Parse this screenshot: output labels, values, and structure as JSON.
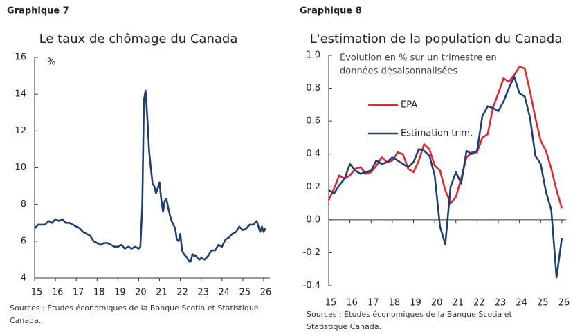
{
  "chart_data": [
    {
      "type": "line",
      "label": "Graphique 7",
      "title": "Le taux de chômage du Canada",
      "unit": "%",
      "x": [
        15.0,
        15.17,
        15.33,
        15.5,
        15.67,
        15.83,
        16.0,
        16.17,
        16.33,
        16.5,
        16.67,
        16.83,
        17.0,
        17.17,
        17.33,
        17.5,
        17.67,
        17.83,
        18.0,
        18.17,
        18.33,
        18.5,
        18.67,
        18.83,
        19.0,
        19.17,
        19.33,
        19.5,
        19.67,
        19.83,
        20.0,
        20.08,
        20.17,
        20.25,
        20.33,
        20.42,
        20.5,
        20.58,
        20.67,
        20.75,
        20.83,
        20.92,
        21.0,
        21.08,
        21.17,
        21.25,
        21.33,
        21.42,
        21.5,
        21.58,
        21.67,
        21.75,
        21.83,
        21.92,
        22.0,
        22.08,
        22.17,
        22.25,
        22.33,
        22.42,
        22.5,
        22.58,
        22.67,
        22.75,
        22.83,
        22.92,
        23.0,
        23.17,
        23.33,
        23.5,
        23.67,
        23.83,
        24.0,
        24.17,
        24.33,
        24.5,
        24.67,
        24.83,
        25.0,
        25.17,
        25.33,
        25.5,
        25.67,
        25.83,
        25.92,
        26.0,
        26.08
      ],
      "values": [
        6.7,
        6.9,
        6.9,
        6.9,
        7.1,
        7.0,
        7.2,
        7.1,
        7.2,
        7.0,
        7.0,
        6.9,
        6.8,
        6.7,
        6.5,
        6.4,
        6.3,
        6.0,
        5.9,
        5.8,
        5.9,
        5.9,
        5.8,
        5.7,
        5.7,
        5.8,
        5.6,
        5.7,
        5.6,
        5.7,
        5.6,
        5.7,
        7.9,
        13.7,
        14.2,
        12.6,
        10.9,
        10.0,
        9.1,
        9.0,
        8.6,
        8.9,
        9.2,
        8.3,
        7.6,
        8.2,
        8.3,
        7.8,
        7.4,
        7.1,
        6.9,
        6.7,
        6.1,
        6.0,
        6.4,
        5.5,
        5.3,
        5.2,
        5.1,
        4.9,
        4.9,
        5.3,
        5.2,
        5.2,
        5.1,
        5.0,
        5.1,
        5.0,
        5.2,
        5.5,
        5.5,
        5.8,
        5.7,
        6.1,
        6.2,
        6.4,
        6.5,
        6.8,
        6.6,
        6.7,
        6.9,
        6.9,
        7.1,
        6.5,
        6.8,
        6.5,
        6.7
      ],
      "color": "#1f3f73",
      "xlim": [
        15,
        26.3
      ],
      "ylim": [
        4,
        16
      ],
      "xticks": [
        15,
        16,
        17,
        18,
        19,
        20,
        21,
        22,
        23,
        24,
        25,
        26
      ],
      "yticks": [
        4,
        6,
        8,
        10,
        12,
        14,
        16
      ],
      "sources": [
        "Sources : Études économiques de la Banque Scotia et Statistique",
        "Canada."
      ]
    },
    {
      "type": "line",
      "label": "Graphique 8",
      "title": "L'estimation de la population du Canada",
      "annotation": [
        "Évolution en % sur un trimestre en",
        "données désaisonnalisées"
      ],
      "x": [
        15.0,
        15.25,
        15.5,
        15.75,
        16.0,
        16.25,
        16.5,
        16.75,
        17.0,
        17.25,
        17.5,
        17.75,
        18.0,
        18.25,
        18.5,
        18.75,
        19.0,
        19.25,
        19.5,
        19.75,
        20.0,
        20.25,
        20.5,
        20.75,
        21.0,
        21.25,
        21.5,
        21.75,
        22.0,
        22.25,
        22.5,
        22.75,
        23.0,
        23.25,
        23.5,
        23.75,
        24.0,
        24.25,
        24.5,
        24.75,
        25.0,
        25.25,
        25.5,
        25.75,
        26.0
      ],
      "series": [
        {
          "name": "EPA",
          "color": "#e3262f",
          "values": [
            0.12,
            0.19,
            0.27,
            0.25,
            0.27,
            0.31,
            0.32,
            0.28,
            0.29,
            0.33,
            0.38,
            0.35,
            0.36,
            0.41,
            0.4,
            0.31,
            0.29,
            0.36,
            0.46,
            0.43,
            0.33,
            0.3,
            0.18,
            0.1,
            0.14,
            0.25,
            0.38,
            0.41,
            0.41,
            0.5,
            0.52,
            0.68,
            0.77,
            0.86,
            0.84,
            0.88,
            0.93,
            0.92,
            0.78,
            0.62,
            0.48,
            0.42,
            0.31,
            0.18,
            0.07
          ]
        },
        {
          "name": "Estimation trim.",
          "color": "#1f3f73",
          "values": [
            0.18,
            0.16,
            0.21,
            0.25,
            0.34,
            0.3,
            0.28,
            0.29,
            0.3,
            0.36,
            0.34,
            0.35,
            0.38,
            0.36,
            0.34,
            0.32,
            0.35,
            0.43,
            0.42,
            0.39,
            0.27,
            -0.04,
            -0.15,
            0.2,
            0.29,
            0.22,
            0.42,
            0.4,
            0.42,
            0.63,
            0.69,
            0.68,
            0.66,
            0.72,
            0.8,
            0.87,
            0.77,
            0.75,
            0.62,
            0.39,
            0.34,
            0.17,
            0.06,
            -0.35,
            -0.11
          ]
        }
      ],
      "xlim": [
        15,
        26.2
      ],
      "ylim": [
        -0.4,
        1
      ],
      "xticks": [
        15,
        16,
        17,
        18,
        19,
        20,
        21,
        22,
        23,
        24,
        25,
        26
      ],
      "yticks": [
        -0.4,
        -0.2,
        {
          "value": 0,
          "label": "0.0"
        },
        0.2,
        0.4,
        0.6,
        0.8,
        {
          "value": 1,
          "label": "1.0"
        }
      ],
      "legend": "upper left",
      "sources": [
        "Sources : Études économiques de la Banque Scotia et",
        "Statistique Canada."
      ]
    }
  ]
}
